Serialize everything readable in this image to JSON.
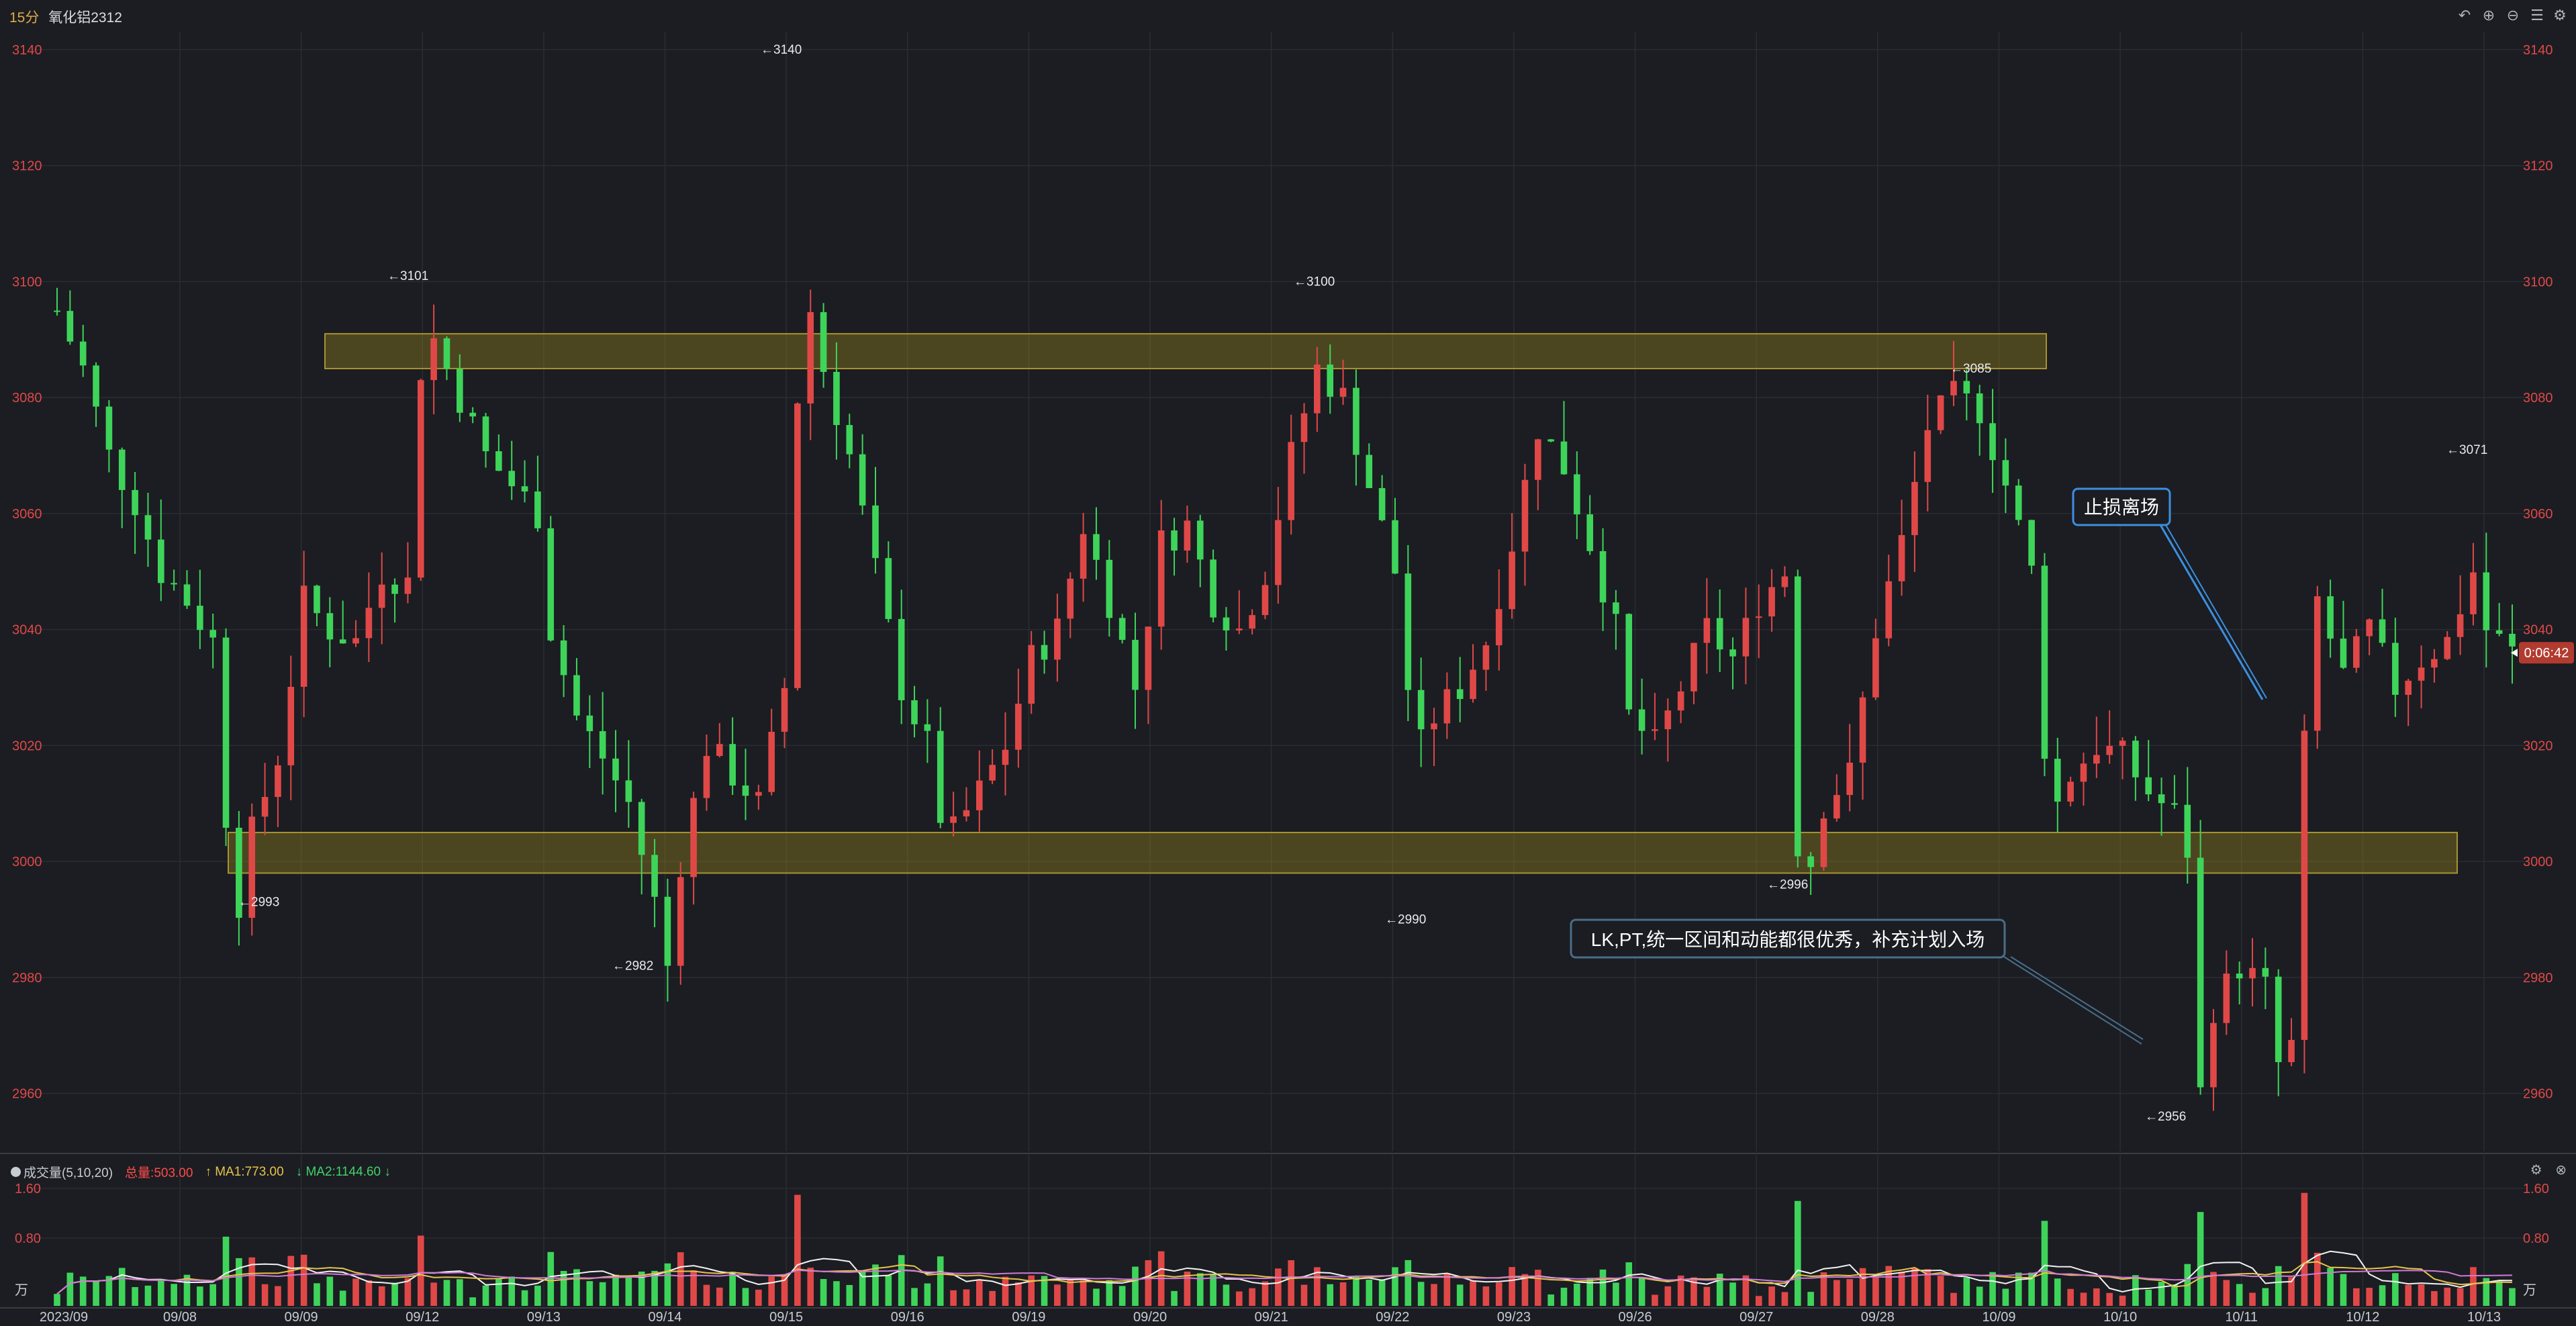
{
  "header": {
    "period": "15分",
    "symbol": "氧化铝2312",
    "icons": [
      "undo-icon",
      "zoom-in-icon",
      "zoom-out-icon",
      "settings-icon",
      "gear-icon"
    ]
  },
  "axis": {
    "price_ticks": [
      "3140",
      "3120",
      "3100",
      "3080",
      "3060",
      "3040",
      "3020",
      "3000",
      "2980",
      "2960"
    ],
    "price_min": 2950,
    "price_max": 3143,
    "current_price_countdown": "0:06:42",
    "current_price": 3036,
    "date_ticks": [
      "2023/09",
      "09/08",
      "09/09",
      "09/12",
      "09/13",
      "09/14",
      "09/15",
      "09/16",
      "09/19",
      "09/20",
      "09/21",
      "09/22",
      "09/23",
      "09/26",
      "09/27",
      "09/28",
      "10/09",
      "10/10",
      "10/11",
      "10/12",
      "10/13"
    ],
    "volume_ticks": [
      "1.60",
      "0.80",
      "万"
    ]
  },
  "chart_data": {
    "type": "candlestick",
    "instrument": "氧化铝2312",
    "interval": "15分",
    "price_path": [
      [
        0,
        3095
      ],
      [
        2,
        3085
      ],
      [
        4,
        3070
      ],
      [
        6,
        3062
      ],
      [
        8,
        3050
      ],
      [
        10,
        3045
      ],
      [
        12,
        3038
      ],
      [
        13,
        3008
      ],
      [
        14,
        2993
      ],
      [
        15,
        3005
      ],
      [
        17,
        3018
      ],
      [
        19,
        3045
      ],
      [
        21,
        3040
      ],
      [
        23,
        3038
      ],
      [
        25,
        3050
      ],
      [
        27,
        3048
      ],
      [
        28,
        3085
      ],
      [
        29,
        3090
      ],
      [
        31,
        3080
      ],
      [
        33,
        3070
      ],
      [
        35,
        3065
      ],
      [
        37,
        3060
      ],
      [
        38,
        3040
      ],
      [
        40,
        3025
      ],
      [
        42,
        3018
      ],
      [
        44,
        3010
      ],
      [
        46,
        2993
      ],
      [
        47,
        2982
      ],
      [
        48,
        3000
      ],
      [
        50,
        3020
      ],
      [
        52,
        3015
      ],
      [
        54,
        3010
      ],
      [
        56,
        3030
      ],
      [
        57,
        3080
      ],
      [
        58,
        3095
      ],
      [
        59,
        3085
      ],
      [
        61,
        3070
      ],
      [
        63,
        3050
      ],
      [
        65,
        3030
      ],
      [
        67,
        3020
      ],
      [
        68,
        3008
      ],
      [
        69,
        3005
      ],
      [
        71,
        3012
      ],
      [
        73,
        3020
      ],
      [
        75,
        3035
      ],
      [
        77,
        3040
      ],
      [
        79,
        3058
      ],
      [
        81,
        3045
      ],
      [
        83,
        3030
      ],
      [
        85,
        3055
      ],
      [
        87,
        3058
      ],
      [
        89,
        3045
      ],
      [
        91,
        3040
      ],
      [
        93,
        3050
      ],
      [
        95,
        3070
      ],
      [
        97,
        3085
      ],
      [
        99,
        3080
      ],
      [
        101,
        3065
      ],
      [
        103,
        3050
      ],
      [
        104,
        3030
      ],
      [
        105,
        3020
      ],
      [
        106,
        3025
      ],
      [
        108,
        3030
      ],
      [
        110,
        3038
      ],
      [
        112,
        3055
      ],
      [
        114,
        3075
      ],
      [
        116,
        3068
      ],
      [
        118,
        3055
      ],
      [
        120,
        3040
      ],
      [
        121,
        3025
      ],
      [
        123,
        3020
      ],
      [
        125,
        3030
      ],
      [
        127,
        3040
      ],
      [
        129,
        3035
      ],
      [
        131,
        3045
      ],
      [
        133,
        3050
      ],
      [
        134,
        3003
      ],
      [
        135,
        3000
      ],
      [
        136,
        3010
      ],
      [
        138,
        3015
      ],
      [
        140,
        3040
      ],
      [
        142,
        3055
      ],
      [
        144,
        3075
      ],
      [
        146,
        3080
      ],
      [
        148,
        3078
      ],
      [
        150,
        3065
      ],
      [
        152,
        3050
      ],
      [
        153,
        3020
      ],
      [
        154,
        3010
      ],
      [
        155,
        3015
      ],
      [
        157,
        3020
      ],
      [
        159,
        3018
      ],
      [
        161,
        3012
      ],
      [
        163,
        3008
      ],
      [
        164,
        3002
      ],
      [
        165,
        2960
      ],
      [
        166,
        2975
      ],
      [
        168,
        2982
      ],
      [
        170,
        2978
      ],
      [
        171,
        2965
      ],
      [
        172,
        2968
      ],
      [
        173,
        3020
      ],
      [
        174,
        3045
      ],
      [
        176,
        3032
      ],
      [
        178,
        3040
      ],
      [
        180,
        3030
      ],
      [
        182,
        3035
      ],
      [
        184,
        3038
      ],
      [
        186,
        3050
      ],
      [
        187,
        3040
      ],
      [
        189,
        3036
      ]
    ],
    "annotations": [
      {
        "text": "←3140",
        "price": 3140
      },
      {
        "text": "←3101",
        "price": 3101
      },
      {
        "text": "←3100",
        "price": 3100
      },
      {
        "text": "←3085",
        "price": 3085
      },
      {
        "text": "←3071",
        "price": 3071
      },
      {
        "text": "←2993",
        "price": 2993
      },
      {
        "text": "←2982",
        "price": 2982
      },
      {
        "text": "←2990",
        "price": 2990
      },
      {
        "text": "←2996",
        "price": 2996
      },
      {
        "text": "←2956",
        "price": 2956
      }
    ],
    "zones": [
      {
        "name": "resistance",
        "from": 3085,
        "to": 3091
      },
      {
        "name": "support",
        "from": 2998,
        "to": 3005
      }
    ],
    "callouts": [
      {
        "text": "止损离场"
      },
      {
        "text": "LK,PT,统一区间和动能都很优秀，补充计划入场"
      }
    ]
  },
  "volume": {
    "title": "成交量(5,10,20)",
    "total_label": "总量:503.00",
    "ma1_label": "MA1:773.00",
    "ma2_label": "MA2:1144.60"
  },
  "colors": {
    "up": "#e04848",
    "down": "#3ed45a",
    "zone": "#8a7a1e",
    "callout_border": "#3c8fe0",
    "axis_red": "#e04848"
  }
}
